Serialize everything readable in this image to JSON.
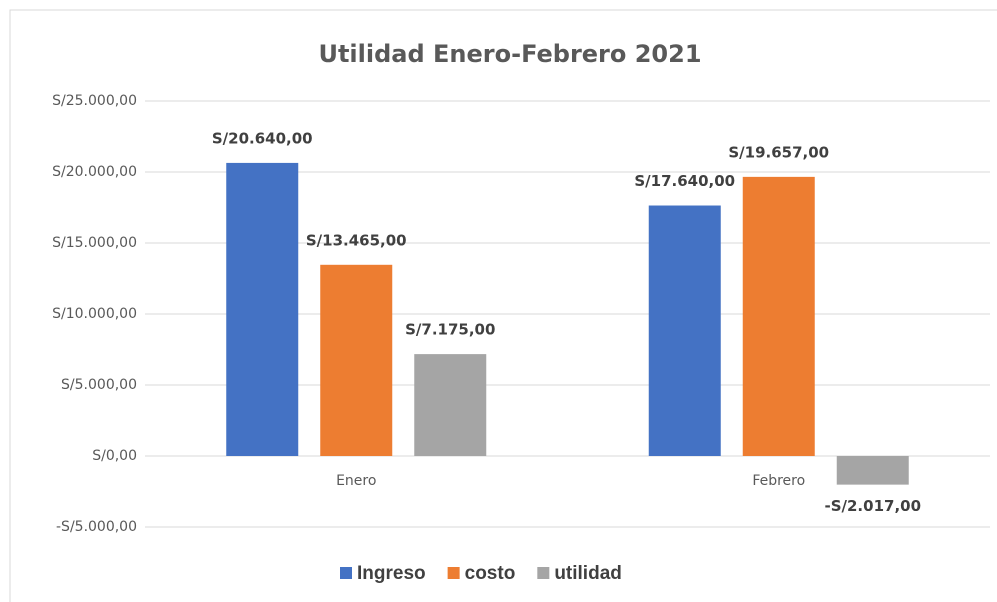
{
  "chart_data": {
    "type": "bar",
    "title": "Utilidad Enero-Febrero 2021",
    "categories": [
      "Enero",
      "Febrero"
    ],
    "series": [
      {
        "name": "Ingreso",
        "color": "#4472c4",
        "values": [
          20640,
          17640
        ],
        "value_labels": [
          "S/20.640,00",
          "S/17.640,00"
        ]
      },
      {
        "name": "costo",
        "color": "#ed7d31",
        "values": [
          13465,
          19657
        ],
        "value_labels": [
          "S/13.465,00",
          "S/19.657,00"
        ]
      },
      {
        "name": "utilidad",
        "color": "#a5a5a5",
        "values": [
          7175,
          -2017
        ],
        "value_labels": [
          "S/7.175,00",
          "-S/2.017,00"
        ]
      }
    ],
    "ylim": [
      -5000,
      25000
    ],
    "yticks": [
      {
        "value": -5000,
        "label": "-S/5.000,00"
      },
      {
        "value": 0,
        "label": "S/0,00"
      },
      {
        "value": 5000,
        "label": "S/5.000,00"
      },
      {
        "value": 10000,
        "label": "S/10.000,00"
      },
      {
        "value": 15000,
        "label": "S/15.000,00"
      },
      {
        "value": 20000,
        "label": "S/20.000,00"
      },
      {
        "value": 25000,
        "label": "S/25.000,00"
      }
    ],
    "grid": true,
    "legend": "bottom"
  }
}
